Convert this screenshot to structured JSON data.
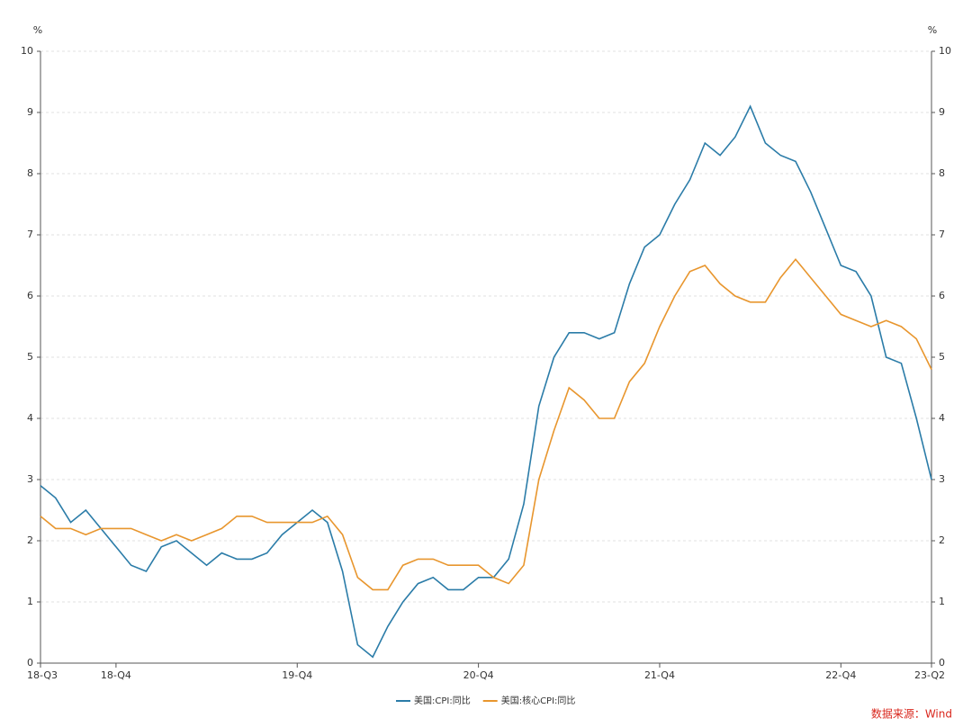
{
  "chart_data": {
    "type": "line",
    "ylabel": "%",
    "y2label": "%",
    "categories": [
      "18-Q3",
      null,
      null,
      null,
      null,
      "18-Q4",
      null,
      null,
      null,
      null,
      null,
      null,
      null,
      null,
      null,
      null,
      null,
      "19-Q4",
      null,
      null,
      null,
      null,
      null,
      null,
      null,
      null,
      null,
      null,
      null,
      "20-Q4",
      null,
      null,
      null,
      null,
      null,
      null,
      null,
      null,
      null,
      null,
      null,
      "21-Q4",
      null,
      null,
      null,
      null,
      null,
      null,
      null,
      null,
      null,
      null,
      null,
      "22-Q4",
      null,
      null,
      null,
      null,
      null,
      "23-Q2"
    ],
    "series": [
      {
        "name": "美国:CPI:同比",
        "color": "#2b7ca8",
        "values": [
          2.9,
          2.7,
          2.3,
          2.5,
          2.2,
          1.9,
          1.6,
          1.5,
          1.9,
          2.0,
          1.8,
          1.6,
          1.8,
          1.7,
          1.7,
          1.8,
          2.1,
          2.3,
          2.5,
          2.3,
          1.5,
          0.3,
          0.1,
          0.6,
          1.0,
          1.3,
          1.4,
          1.2,
          1.2,
          1.4,
          1.4,
          1.7,
          2.6,
          4.2,
          5.0,
          5.4,
          5.4,
          5.3,
          5.4,
          6.2,
          6.8,
          7.0,
          7.5,
          7.9,
          8.5,
          8.3,
          8.6,
          9.1,
          8.5,
          8.3,
          8.2,
          7.7,
          7.1,
          6.5,
          6.4,
          6.0,
          5.0,
          4.9,
          4.0,
          3.0
        ]
      },
      {
        "name": "美国:核心CPI:同比",
        "color": "#e8962e",
        "values": [
          2.4,
          2.2,
          2.2,
          2.1,
          2.2,
          2.2,
          2.2,
          2.1,
          2.0,
          2.1,
          2.0,
          2.1,
          2.2,
          2.4,
          2.4,
          2.3,
          2.3,
          2.3,
          2.3,
          2.4,
          2.1,
          1.4,
          1.2,
          1.2,
          1.6,
          1.7,
          1.7,
          1.6,
          1.6,
          1.6,
          1.4,
          1.3,
          1.6,
          3.0,
          3.8,
          4.5,
          4.3,
          4.0,
          4.0,
          4.6,
          4.9,
          5.5,
          6.0,
          6.4,
          6.5,
          6.2,
          6.0,
          5.9,
          5.9,
          6.3,
          6.6,
          6.3,
          6.0,
          5.7,
          5.6,
          5.5,
          5.6,
          5.5,
          5.3,
          4.8
        ]
      }
    ],
    "ylim": [
      0,
      10
    ],
    "yticks": [
      0,
      1,
      2,
      3,
      4,
      5,
      6,
      7,
      8,
      9,
      10
    ],
    "y2lim": [
      0,
      10
    ],
    "y2ticks": [
      0,
      1,
      2,
      3,
      4,
      5,
      6,
      7,
      8,
      9,
      10
    ],
    "grid": true,
    "source": "数据来源：Wind"
  }
}
